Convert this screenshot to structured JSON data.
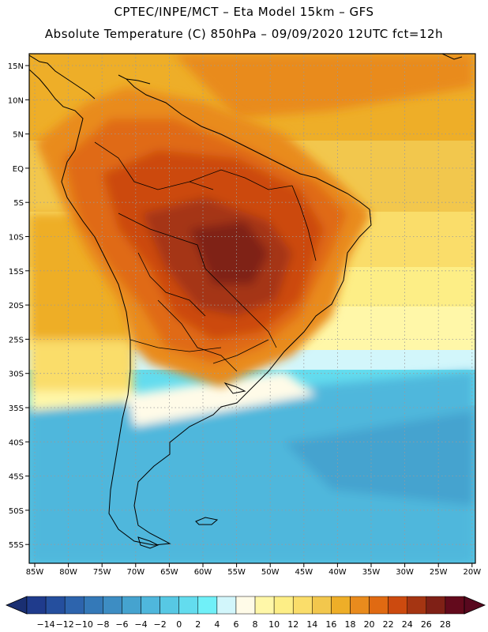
{
  "title": {
    "line1": "CPTEC/INPE/MCT –  Eta Model 15km – GFS",
    "line2": "Absolute Temperature (C) 850hPa – 09/09/2020 12UTC fct=12h"
  },
  "map": {
    "lat_labels": [
      "15N",
      "10N",
      "5N",
      "EQ",
      "5S",
      "10S",
      "15S",
      "20S",
      "25S",
      "30S",
      "35S",
      "40S",
      "45S",
      "50S",
      "55S"
    ],
    "lon_labels": [
      "85W",
      "80W",
      "75W",
      "70W",
      "65W",
      "60W",
      "55W",
      "50W",
      "45W",
      "40W",
      "35W",
      "30W",
      "25W",
      "20W"
    ],
    "grid": "dotted"
  },
  "colorbar": {
    "labels": [
      "-14",
      "-12",
      "-10",
      "-8",
      "-6",
      "-4",
      "-2",
      "0",
      "2",
      "4",
      "6",
      "8",
      "10",
      "12",
      "14",
      "16",
      "18",
      "20",
      "22",
      "24",
      "26",
      "28"
    ],
    "colors": [
      "#1f3b8c",
      "#254f9e",
      "#2d64ad",
      "#3479b8",
      "#3d8dc3",
      "#45a3cf",
      "#4fb7dc",
      "#57c8e4",
      "#63dcee",
      "#70f0f8",
      "#d2f6fb",
      "#fffbe8",
      "#fff7a8",
      "#fdee86",
      "#fadd6a",
      "#f2c74d",
      "#eeae28",
      "#e98b1d",
      "#e06a12",
      "#cc4a0f",
      "#a53512",
      "#7f2016",
      "#630a1c"
    ],
    "min_arrow_color": "#1a2f72",
    "max_arrow_color": "#58081e"
  }
}
